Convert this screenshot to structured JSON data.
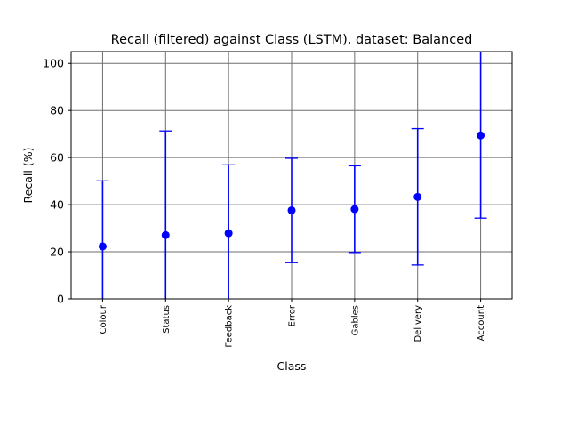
{
  "chart_data": {
    "type": "scatter",
    "title": "Recall (filtered) against Class (LSTM), dataset: Balanced",
    "xlabel": "Class",
    "ylabel": "Recall (%)",
    "ylim": [
      0,
      105
    ],
    "yticks": [
      0,
      20,
      40,
      60,
      80,
      100
    ],
    "grid": true,
    "color": "#0000ff",
    "categories": [
      "Colour",
      "Status",
      "Feedback",
      "Error",
      "Gables",
      "Delivery",
      "Account"
    ],
    "values": [
      22.3,
      27.1,
      27.9,
      37.6,
      38.1,
      43.3,
      69.4
    ],
    "error_lower": [
      0,
      0,
      0,
      15.4,
      19.7,
      14.4,
      34.3
    ],
    "error_upper": [
      50.1,
      71.3,
      56.9,
      59.7,
      56.5,
      72.3,
      105
    ]
  }
}
